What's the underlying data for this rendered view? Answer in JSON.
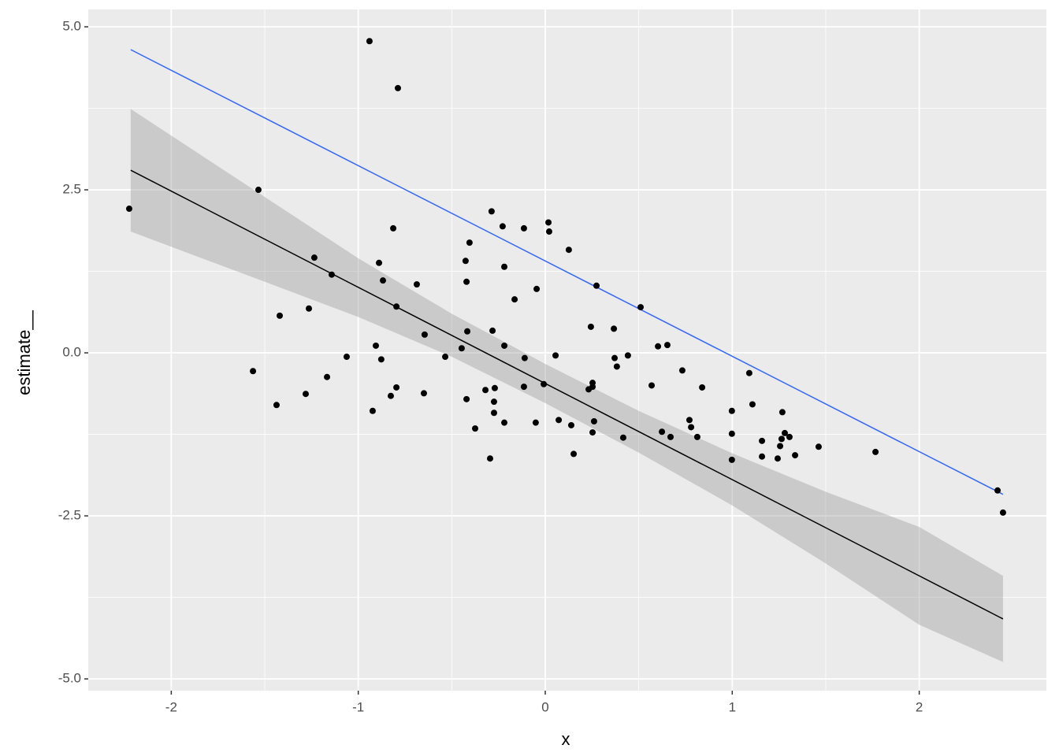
{
  "chart_data": {
    "type": "scatter",
    "x_label": "x",
    "y_label": "estimate__",
    "xlim": [
      -2.444,
      2.68
    ],
    "ylim": [
      -5.18,
      5.266
    ],
    "xticks": [
      -2,
      -1,
      0,
      1,
      2
    ],
    "yticks": [
      {
        "value": -5,
        "label": "-5.0"
      },
      {
        "value": -2.5,
        "label": "-2.5"
      },
      {
        "value": 0,
        "label": "0.0"
      },
      {
        "value": 2.5,
        "label": "2.5"
      },
      {
        "value": 5,
        "label": "5.0"
      }
    ],
    "x_minor_breaks": [
      -1.5,
      -0.5,
      0.5,
      1.5
    ],
    "y_minor_breaks": [
      -3.75,
      -1.25,
      1.25,
      3.75
    ],
    "grid": true,
    "panel_color": "#ebebeb",
    "points": {
      "color": "#000000",
      "x": [
        -2.225,
        -1.534,
        -0.94,
        -0.788,
        -1.563,
        -1.437,
        -1.42,
        -1.264,
        -1.281,
        -1.235,
        -1.167,
        -1.142,
        -1.062,
        -0.923,
        -0.906,
        -0.889,
        -0.877,
        -0.868,
        -0.826,
        -0.813,
        -0.796,
        -0.796,
        -0.687,
        -0.645,
        -0.649,
        -0.535,
        -0.447,
        -0.426,
        -0.421,
        -0.421,
        -0.417,
        -0.405,
        -0.375,
        -0.32,
        -0.295,
        -0.287,
        -0.282,
        -0.274,
        -0.274,
        -0.27,
        -0.228,
        -0.219,
        -0.219,
        -0.219,
        -0.164,
        -0.114,
        -0.114,
        -0.11,
        -0.051,
        -0.046,
        -0.008,
        0.017,
        0.021,
        0.055,
        0.072,
        0.126,
        0.139,
        0.152,
        0.232,
        0.244,
        0.253,
        0.253,
        0.253,
        0.261,
        0.274,
        0.367,
        0.371,
        0.383,
        0.417,
        0.442,
        0.51,
        0.569,
        0.603,
        0.624,
        0.653,
        0.67,
        0.733,
        0.771,
        0.78,
        0.813,
        0.839,
        0.998,
        0.998,
        0.998,
        1.091,
        1.108,
        1.159,
        1.159,
        1.243,
        1.256,
        1.264,
        1.268,
        1.281,
        1.306,
        1.336,
        1.462,
        1.766,
        2.419,
        2.448
      ],
      "values": [
        2.21,
        2.5,
        4.78,
        4.06,
        -0.28,
        -0.8,
        0.57,
        0.68,
        -0.63,
        1.46,
        -0.37,
        1.2,
        -0.06,
        -0.89,
        0.11,
        1.38,
        -0.1,
        1.11,
        -0.66,
        1.91,
        0.71,
        -0.53,
        1.05,
        0.28,
        -0.62,
        -0.06,
        0.07,
        1.41,
        1.09,
        -0.71,
        0.33,
        1.69,
        -1.16,
        -0.57,
        -1.62,
        2.17,
        0.34,
        -0.75,
        -0.92,
        -0.54,
        1.94,
        1.32,
        0.11,
        -1.07,
        0.82,
        1.91,
        -0.52,
        -0.08,
        -1.07,
        0.98,
        -0.48,
        2.0,
        1.86,
        -0.04,
        -1.03,
        1.58,
        -1.11,
        -1.55,
        -0.56,
        0.4,
        -0.52,
        -0.46,
        -1.22,
        -1.05,
        1.03,
        0.37,
        -0.08,
        -0.21,
        -1.3,
        -0.04,
        0.7,
        -0.5,
        0.1,
        -1.21,
        0.12,
        -1.29,
        -0.27,
        -1.03,
        -1.14,
        -1.29,
        -0.53,
        -0.89,
        -1.24,
        -1.64,
        -0.31,
        -0.79,
        -1.35,
        -1.59,
        -1.62,
        -1.43,
        -1.32,
        -0.91,
        -1.23,
        -1.29,
        -1.57,
        -1.44,
        -1.52,
        -2.11,
        -2.45
      ]
    },
    "ribbon": {
      "color": "#999999",
      "x": [
        -2.217,
        -1.5,
        -1,
        -0.5,
        0,
        0.5,
        1,
        1.5,
        2,
        2.448
      ],
      "upper": [
        3.74,
        2.39,
        1.45,
        0.6,
        -0.17,
        -0.89,
        -1.54,
        -2.13,
        -2.67,
        -3.42
      ],
      "lower": [
        1.86,
        1.09,
        0.55,
        -0.06,
        -0.77,
        -1.53,
        -2.34,
        -3.23,
        -4.17,
        -4.74
      ]
    },
    "lines": [
      {
        "color": "#3366ff",
        "x": [
          -2.217,
          2.448
        ],
        "values": [
          4.65,
          -2.17
        ]
      },
      {
        "color": "#000000",
        "x": [
          -2.217,
          2.448
        ],
        "values": [
          2.8,
          -4.08
        ]
      }
    ]
  }
}
